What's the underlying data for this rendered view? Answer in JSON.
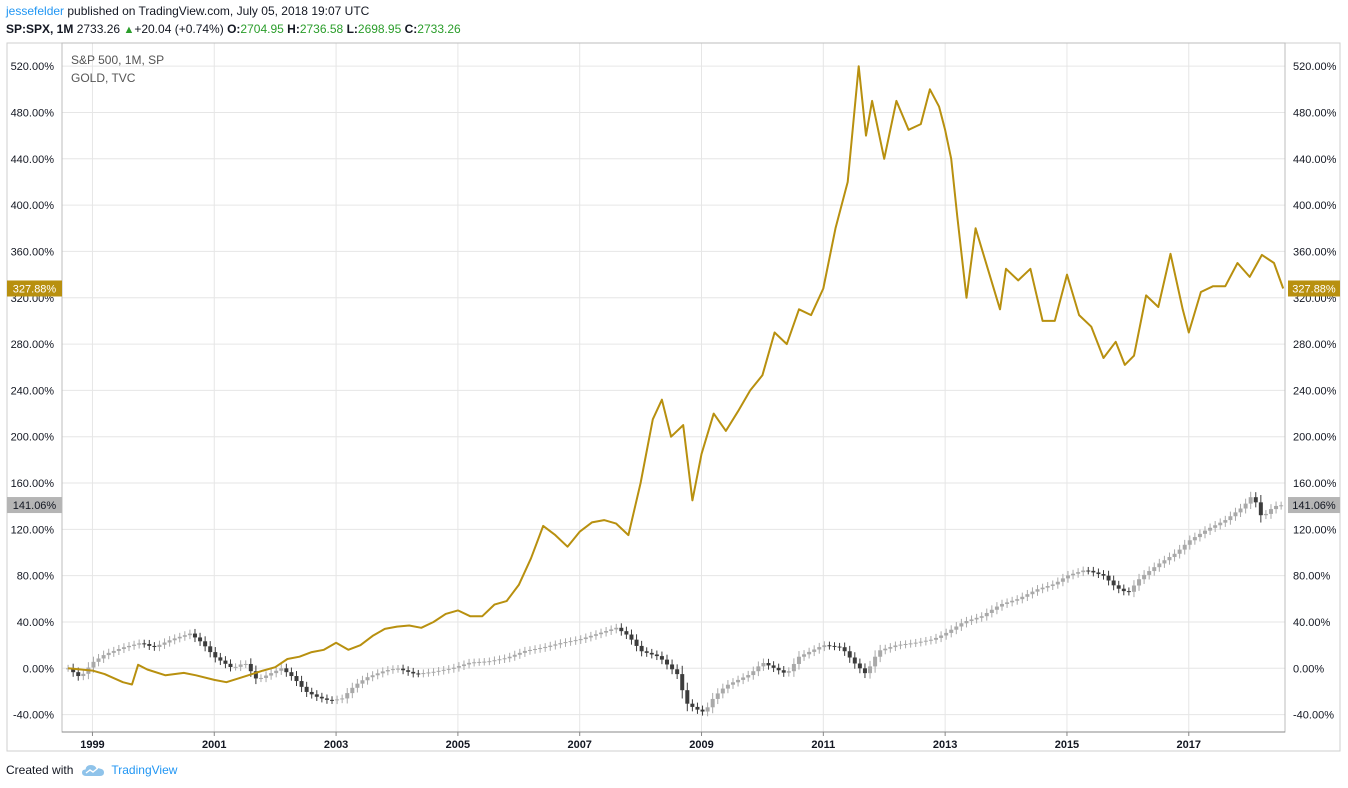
{
  "header": {
    "user": "jessefelder",
    "published": "published on TradingView.com, July 05, 2018 19:07 UTC",
    "symbol": "SP:SPX, 1M",
    "price": "2733.26",
    "change": "+20.04 (+0.74%)",
    "o_label": "O:",
    "o_value": "2704.95",
    "h_label": "H:",
    "h_value": "2736.58",
    "l_label": "L:",
    "l_value": "2698.95",
    "c_label": "C:",
    "c_value": "2733.26"
  },
  "footer": {
    "created_with": "Created with",
    "brand": "TradingView"
  },
  "colors": {
    "gold": "#b8900f",
    "spx_up": "#a9a9a9",
    "spx_down": "#3c3c3c",
    "grid": "#e6e6e6"
  },
  "chart_data": {
    "type": "line",
    "legend": [
      "S&P 500, 1M, SP",
      "GOLD, TVC"
    ],
    "ylim": [
      -55,
      540
    ],
    "xlim": [
      1998.5,
      2018.58
    ],
    "y_ticks": [
      "520.00%",
      "480.00%",
      "440.00%",
      "400.00%",
      "360.00%",
      "320.00%",
      "280.00%",
      "240.00%",
      "200.00%",
      "160.00%",
      "120.00%",
      "80.00%",
      "40.00%",
      "0.00%",
      "-40.00%"
    ],
    "y_tick_values": [
      520,
      480,
      440,
      400,
      360,
      320,
      280,
      240,
      200,
      160,
      120,
      80,
      40,
      0,
      -40
    ],
    "x_ticks": [
      "1999",
      "2001",
      "2003",
      "2005",
      "2007",
      "2009",
      "2011",
      "2013",
      "2015",
      "2017"
    ],
    "x_tick_values": [
      1999,
      2001,
      2003,
      2005,
      2007,
      2009,
      2011,
      2013,
      2015,
      2017
    ],
    "last_values": {
      "gold": "327.88%",
      "spx": "141.06%"
    },
    "series": [
      {
        "name": "GOLD, TVC",
        "x": [
          1998.6,
          1999.0,
          1999.2,
          1999.5,
          1999.65,
          1999.75,
          1999.9,
          2000.2,
          2000.5,
          2000.7,
          2001.0,
          2001.2,
          2001.5,
          2001.8,
          2002.0,
          2002.2,
          2002.4,
          2002.6,
          2002.8,
          2003.0,
          2003.2,
          2003.4,
          2003.6,
          2003.8,
          2004.0,
          2004.2,
          2004.4,
          2004.6,
          2004.8,
          2005.0,
          2005.2,
          2005.4,
          2005.6,
          2005.8,
          2006.0,
          2006.2,
          2006.4,
          2006.6,
          2006.8,
          2007.0,
          2007.2,
          2007.4,
          2007.6,
          2007.8,
          2008.0,
          2008.2,
          2008.35,
          2008.5,
          2008.7,
          2008.85,
          2009.0,
          2009.2,
          2009.4,
          2009.6,
          2009.8,
          2010.0,
          2010.2,
          2010.4,
          2010.6,
          2010.8,
          2011.0,
          2011.2,
          2011.4,
          2011.58,
          2011.7,
          2011.8,
          2012.0,
          2012.2,
          2012.4,
          2012.6,
          2012.75,
          2012.9,
          2013.0,
          2013.1,
          2013.2,
          2013.35,
          2013.5,
          2013.7,
          2013.9,
          2014.0,
          2014.2,
          2014.4,
          2014.6,
          2014.8,
          2015.0,
          2015.2,
          2015.4,
          2015.6,
          2015.8,
          2015.95,
          2016.1,
          2016.3,
          2016.5,
          2016.7,
          2016.9,
          2017.0,
          2017.2,
          2017.4,
          2017.6,
          2017.8,
          2018.0,
          2018.2,
          2018.4,
          2018.55
        ],
        "values": [
          0,
          -2,
          -5,
          -12,
          -14,
          3,
          -1,
          -6,
          -4,
          -6,
          -10,
          -12,
          -7,
          -2,
          1,
          8,
          10,
          14,
          16,
          22,
          16,
          20,
          28,
          34,
          36,
          37,
          35,
          40,
          47,
          50,
          45,
          45,
          55,
          58,
          72,
          95,
          123,
          115,
          105,
          118,
          126,
          128,
          125,
          115,
          160,
          215,
          232,
          200,
          210,
          145,
          185,
          220,
          205,
          222,
          240,
          253,
          290,
          280,
          310,
          305,
          328,
          380,
          420,
          520,
          460,
          490,
          440,
          490,
          465,
          470,
          500,
          485,
          465,
          440,
          390,
          320,
          380,
          345,
          310,
          345,
          335,
          345,
          300,
          300,
          340,
          305,
          295,
          268,
          282,
          262,
          270,
          322,
          312,
          358,
          310,
          290,
          325,
          330,
          330,
          350,
          338,
          357,
          350,
          328
        ]
      },
      {
        "name": "S&P 500, 1M, SP",
        "x": [
          1998.6,
          1998.8,
          1999.0,
          1999.2,
          1999.5,
          1999.8,
          2000.0,
          2000.3,
          2000.6,
          2000.8,
          2001.0,
          2001.3,
          2001.5,
          2001.7,
          2001.9,
          2002.1,
          2002.3,
          2002.5,
          2002.7,
          2002.9,
          2003.1,
          2003.3,
          2003.5,
          2003.8,
          2004.0,
          2004.3,
          2004.6,
          2004.9,
          2005.2,
          2005.5,
          2005.8,
          2006.1,
          2006.4,
          2006.7,
          2007.0,
          2007.3,
          2007.6,
          2007.8,
          2008.0,
          2008.3,
          2008.6,
          2008.75,
          2008.9,
          2009.05,
          2009.2,
          2009.4,
          2009.6,
          2009.8,
          2010.0,
          2010.2,
          2010.4,
          2010.6,
          2010.8,
          2011.0,
          2011.3,
          2011.5,
          2011.7,
          2011.9,
          2012.2,
          2012.5,
          2012.8,
          2013.0,
          2013.3,
          2013.6,
          2013.9,
          2014.2,
          2014.5,
          2014.8,
          2015.0,
          2015.3,
          2015.6,
          2015.8,
          2016.0,
          2016.2,
          2016.5,
          2016.8,
          2017.0,
          2017.3,
          2017.6,
          2017.9,
          2018.05,
          2018.2,
          2018.4,
          2018.55
        ],
        "values": [
          0,
          -8,
          5,
          12,
          18,
          22,
          18,
          25,
          30,
          22,
          10,
          0,
          5,
          -10,
          -5,
          0,
          -8,
          -20,
          -25,
          -28,
          -26,
          -15,
          -8,
          -2,
          0,
          -5,
          -3,
          0,
          5,
          6,
          9,
          15,
          18,
          22,
          25,
          30,
          35,
          28,
          15,
          10,
          -5,
          -30,
          -35,
          -38,
          -25,
          -15,
          -10,
          -5,
          5,
          0,
          -5,
          10,
          15,
          20,
          18,
          5,
          -5,
          15,
          20,
          22,
          25,
          30,
          40,
          45,
          55,
          60,
          68,
          73,
          80,
          85,
          80,
          70,
          65,
          78,
          90,
          100,
          110,
          120,
          128,
          140,
          150,
          130,
          140,
          141
        ]
      }
    ]
  }
}
